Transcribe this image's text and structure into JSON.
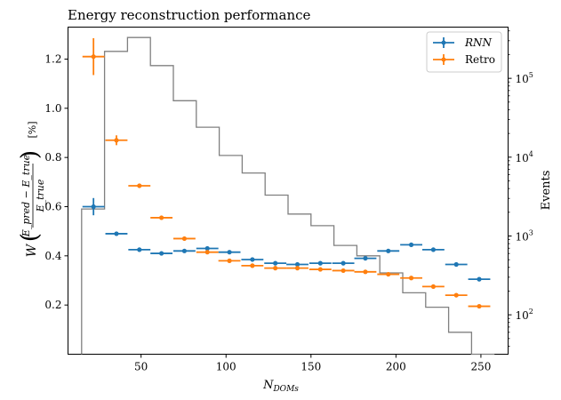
{
  "chart_data": {
    "type": "scatter",
    "title": "Energy reconstruction performance",
    "xlabel_base": "N",
    "xlabel_sub": "DOMs",
    "ylabel_W": "W",
    "ylabel_num": "E_pred − E_true",
    "ylabel_den": "E_true",
    "ylabel_unit": "[%]",
    "y2label": "Events",
    "xlim": [
      7,
      266
    ],
    "ylim": [
      0.0,
      1.33
    ],
    "y2lim_log10": [
      1.5,
      5.65
    ],
    "xticks": [
      50,
      100,
      150,
      200,
      250
    ],
    "yticks": [
      0.2,
      0.4,
      0.6,
      0.8,
      1.0,
      1.2
    ],
    "y2ticks": [
      {
        "exp": 2,
        "label": "10",
        "sup": "2"
      },
      {
        "exp": 3,
        "label": "10",
        "sup": "3"
      },
      {
        "exp": 4,
        "label": "10",
        "sup": "4"
      },
      {
        "exp": 5,
        "label": "10",
        "sup": "5"
      }
    ],
    "legend_position": "top-right",
    "grid": false,
    "series": [
      {
        "name": "RNN",
        "name_italic": true,
        "color": "#1f77b4",
        "x": [
          22,
          35.5,
          49,
          62,
          75.5,
          89,
          102,
          115.5,
          129,
          142,
          155.5,
          169,
          182,
          195.5,
          209,
          222,
          235.5,
          249
        ],
        "y": [
          0.6,
          0.49,
          0.425,
          0.41,
          0.42,
          0.43,
          0.415,
          0.385,
          0.37,
          0.365,
          0.37,
          0.37,
          0.39,
          0.42,
          0.445,
          0.425,
          0.365,
          0.305
        ],
        "yerr": [
          0.035,
          0.006,
          0.005,
          0.005,
          0.005,
          0.005,
          0.005,
          0.005,
          0.005,
          0.005,
          0.005,
          0.005,
          0.005,
          0.005,
          0.005,
          0.005,
          0.006,
          0.006
        ],
        "xhalfwidth": 6.5
      },
      {
        "name": "Retro",
        "name_italic": false,
        "color": "#ff7f0e",
        "x": [
          22,
          35.5,
          49,
          62,
          75.5,
          89,
          102,
          115.5,
          129,
          142,
          155.5,
          169,
          182,
          195.5,
          209,
          222,
          235.5,
          249
        ],
        "y": [
          1.21,
          0.87,
          0.685,
          0.555,
          0.47,
          0.415,
          0.38,
          0.36,
          0.35,
          0.35,
          0.345,
          0.34,
          0.335,
          0.325,
          0.31,
          0.275,
          0.24,
          0.195
        ],
        "yerr": [
          0.075,
          0.02,
          0.008,
          0.006,
          0.005,
          0.005,
          0.005,
          0.005,
          0.005,
          0.005,
          0.005,
          0.005,
          0.005,
          0.005,
          0.005,
          0.005,
          0.005,
          0.005
        ],
        "xhalfwidth": 6.5
      }
    ],
    "histogram": {
      "color": "#808080",
      "edges": [
        15,
        28.5,
        42,
        55.5,
        69,
        82.5,
        96,
        109.5,
        123,
        136.5,
        150,
        163.5,
        177,
        190.5,
        204,
        217.5,
        231,
        244.5,
        258
      ],
      "counts": [
        2200,
        220000,
        330000,
        145000,
        52000,
        24000,
        10500,
        6300,
        3300,
        1900,
        1350,
        760,
        560,
        340,
        190,
        125,
        60,
        8
      ]
    }
  }
}
